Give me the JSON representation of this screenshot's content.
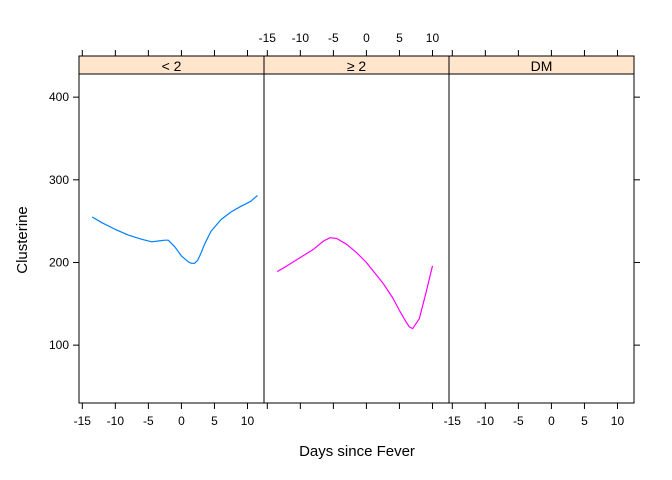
{
  "chart_data": {
    "type": "line",
    "layout": "three lattice panels side by side with strip headers",
    "xlabel": "Days since Fever",
    "ylabel": "Clusterine",
    "xlim": [
      -15.5,
      12.5
    ],
    "ylim": [
      30,
      428
    ],
    "x_ticks": [
      -15,
      -10,
      -5,
      0,
      5,
      10
    ],
    "y_ticks": [
      100,
      200,
      300,
      400
    ],
    "strip_color": "#ffe5cc",
    "panels": [
      {
        "label": "< 2",
        "color": "#0080ff",
        "x": [
          -13.5,
          -12,
          -10,
          -8,
          -6,
          -4.5,
          -3.5,
          -2.5,
          -2,
          -1,
          0,
          1,
          1.5,
          2,
          2.5,
          3,
          3.5,
          4.5,
          6,
          7.5,
          9,
          10.5,
          11.5
        ],
        "y": [
          255,
          248,
          240,
          233,
          228,
          225,
          226,
          227,
          227,
          219,
          208,
          201,
          199,
          199,
          203,
          212,
          222,
          238,
          252,
          261,
          268,
          274,
          281
        ]
      },
      {
        "label": "≥ 2",
        "color": "#ff00ff",
        "x": [
          -13.5,
          -12,
          -10,
          -8,
          -6.5,
          -5.5,
          -4.5,
          -3,
          -1.5,
          0,
          1,
          2.5,
          4,
          5,
          6,
          6.5,
          7,
          8,
          9,
          10
        ],
        "y": [
          189,
          196,
          206,
          216,
          226,
          230,
          229,
          222,
          212,
          200,
          190,
          175,
          157,
          142,
          128,
          122,
          120,
          132,
          163,
          196
        ]
      },
      {
        "label": "DM",
        "color": "#000000",
        "x": [],
        "y": []
      }
    ],
    "top_axis_panel": 1,
    "bottom_axis_panels": [
      0,
      2
    ]
  }
}
